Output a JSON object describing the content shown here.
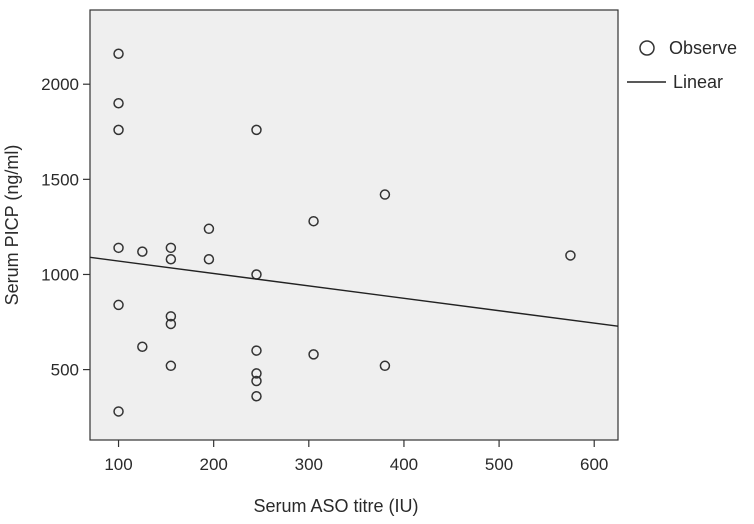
{
  "chart_data": {
    "type": "scatter",
    "title": "",
    "xlabel": "Serum ASO titre (IU)",
    "ylabel": "Serum PICP (ng/ml)",
    "xlim": [
      70,
      625
    ],
    "ylim": [
      130,
      2390
    ],
    "xticks": [
      100,
      200,
      300,
      400,
      500,
      600
    ],
    "yticks": [
      500,
      1000,
      1500,
      2000
    ],
    "xtick_labels": [
      "100",
      "200",
      "300",
      "400",
      "500",
      "600"
    ],
    "ytick_labels": [
      "500",
      "1000",
      "1500",
      "2000"
    ],
    "grid": false,
    "plot_background": "#efefef",
    "legend_position": "top-right, outside plot",
    "series": [
      {
        "name": "Observe",
        "marker": "open-circle",
        "points": [
          {
            "x": 100,
            "y": 2160
          },
          {
            "x": 100,
            "y": 1900
          },
          {
            "x": 100,
            "y": 1760
          },
          {
            "x": 100,
            "y": 1140
          },
          {
            "x": 100,
            "y": 840
          },
          {
            "x": 100,
            "y": 280
          },
          {
            "x": 125,
            "y": 1120
          },
          {
            "x": 125,
            "y": 620
          },
          {
            "x": 155,
            "y": 1140
          },
          {
            "x": 155,
            "y": 1080
          },
          {
            "x": 155,
            "y": 780
          },
          {
            "x": 155,
            "y": 740
          },
          {
            "x": 155,
            "y": 520
          },
          {
            "x": 195,
            "y": 1240
          },
          {
            "x": 195,
            "y": 1080
          },
          {
            "x": 245,
            "y": 1760
          },
          {
            "x": 245,
            "y": 1000
          },
          {
            "x": 245,
            "y": 600
          },
          {
            "x": 245,
            "y": 480
          },
          {
            "x": 245,
            "y": 440
          },
          {
            "x": 245,
            "y": 360
          },
          {
            "x": 305,
            "y": 1280
          },
          {
            "x": 305,
            "y": 580
          },
          {
            "x": 380,
            "y": 1420
          },
          {
            "x": 380,
            "y": 520
          },
          {
            "x": 575,
            "y": 1100
          }
        ]
      },
      {
        "name": "Linear",
        "type": "line",
        "points": [
          {
            "x": 70,
            "y": 1090
          },
          {
            "x": 625,
            "y": 728
          }
        ]
      }
    ]
  },
  "legend": {
    "observed_label": "Observe",
    "linear_label": "Linear"
  }
}
